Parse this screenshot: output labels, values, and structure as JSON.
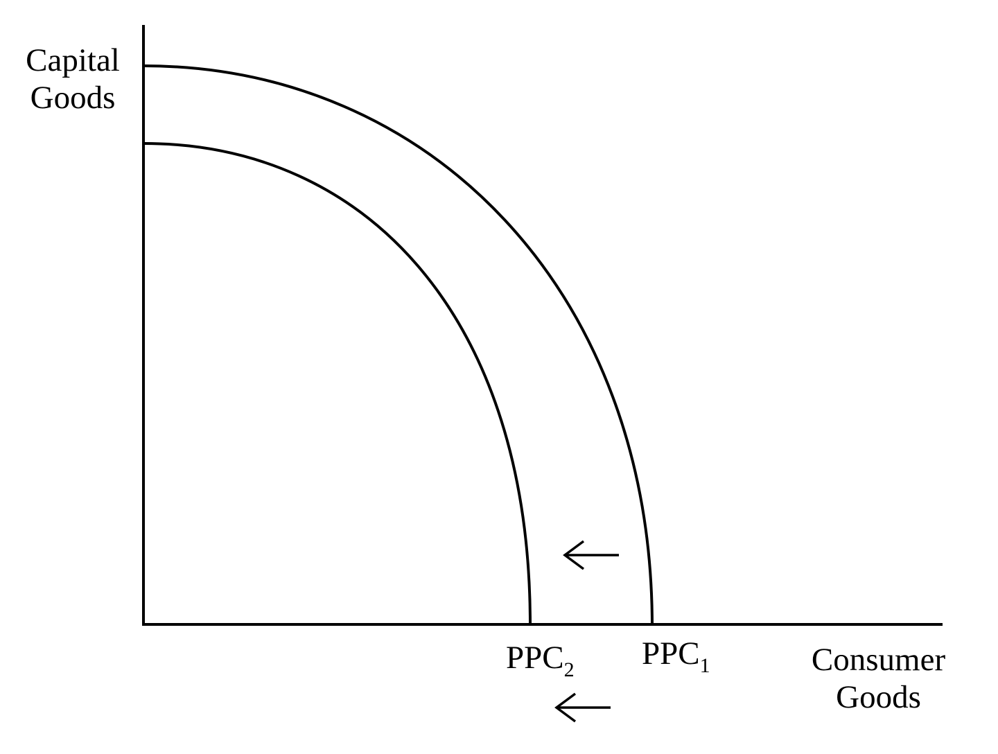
{
  "diagram": {
    "axes": {
      "y_label_line1": "Capital",
      "y_label_line2": "Goods",
      "x_label_line1": "Consumer",
      "x_label_line2": "Goods"
    },
    "curves": [
      {
        "label_main": "PPC",
        "label_sub": "1"
      },
      {
        "label_main": "PPC",
        "label_sub": "2"
      }
    ],
    "arrows": [
      "shift-left",
      "shift-left"
    ],
    "stroke_color": "#000000",
    "background_color": "#ffffff"
  }
}
